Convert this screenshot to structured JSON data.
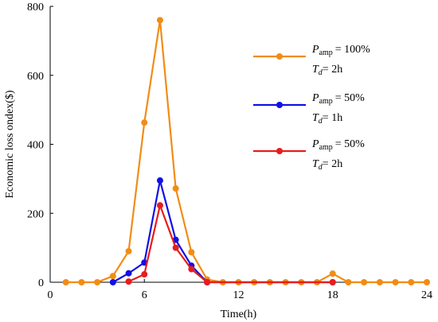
{
  "chart_data": {
    "type": "line",
    "xlabel": "Time(h)",
    "ylabel": "Economic loss ondex($)",
    "xlim": [
      0,
      24
    ],
    "ylim": [
      0,
      800
    ],
    "xticks": [
      0,
      6,
      12,
      18,
      24
    ],
    "yticks": [
      0,
      200,
      400,
      600,
      800
    ],
    "grid": false,
    "legend_position": "right",
    "series": [
      {
        "color": "#F28C14",
        "legend": {
          "p_symbol": "P",
          "p_sub": "amp",
          "p_value": "= 100%",
          "t_symbol": "T",
          "t_sub": "d",
          "t_value": "= 2h"
        },
        "points": [
          [
            1,
            0
          ],
          [
            2,
            0
          ],
          [
            3,
            0
          ],
          [
            4,
            18
          ],
          [
            5,
            90
          ],
          [
            6,
            463
          ],
          [
            7,
            760
          ],
          [
            8,
            272
          ],
          [
            9,
            87
          ],
          [
            10,
            8
          ],
          [
            11,
            0
          ],
          [
            12,
            0
          ],
          [
            13,
            0
          ],
          [
            14,
            0
          ],
          [
            15,
            0
          ],
          [
            16,
            0
          ],
          [
            17,
            0
          ],
          [
            18,
            25
          ],
          [
            19,
            0
          ],
          [
            20,
            0
          ],
          [
            21,
            0
          ],
          [
            22,
            0
          ],
          [
            23,
            0
          ],
          [
            24,
            0
          ]
        ]
      },
      {
        "color": "#1010E6",
        "legend": {
          "p_symbol": "P",
          "p_sub": "amp",
          "p_value": "= 50%",
          "t_symbol": "T",
          "t_sub": "d",
          "t_value": "= 1h"
        },
        "points": [
          [
            4,
            0
          ],
          [
            5,
            26
          ],
          [
            6,
            57
          ],
          [
            7,
            295
          ],
          [
            8,
            123
          ],
          [
            9,
            48
          ],
          [
            10,
            0
          ],
          [
            18,
            0
          ]
        ]
      },
      {
        "color": "#E81C1C",
        "legend": {
          "p_symbol": "P",
          "p_sub": "amp",
          "p_value": "= 50%",
          "t_symbol": "T",
          "t_sub": "d",
          "t_value": "= 2h"
        },
        "points": [
          [
            5,
            2
          ],
          [
            6,
            23
          ],
          [
            7,
            223
          ],
          [
            8,
            100
          ],
          [
            9,
            38
          ],
          [
            10,
            0
          ],
          [
            18,
            0
          ]
        ]
      }
    ]
  }
}
